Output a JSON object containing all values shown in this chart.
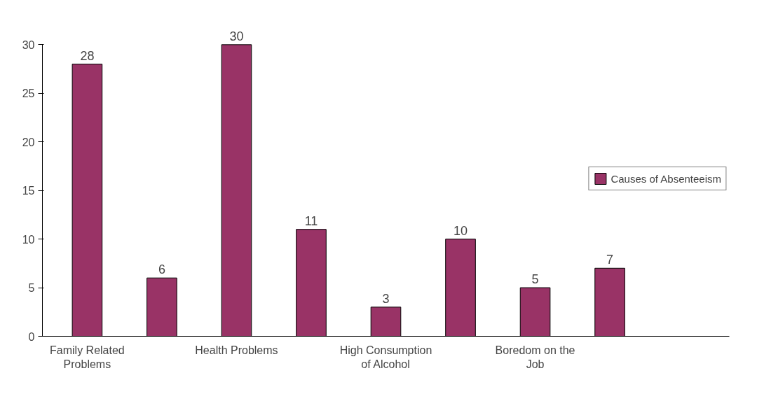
{
  "chart_data": {
    "type": "bar",
    "categories": [
      "Family Related Problems",
      null,
      "Health Problems",
      null,
      "High Consumption of Alcohol",
      null,
      "Boredom on the Job",
      null,
      null
    ],
    "series": [
      {
        "name": "Causes of Absenteeism",
        "color": "#993366",
        "values": [
          28,
          6,
          30,
          11,
          3,
          10,
          5,
          7,
          null
        ]
      }
    ],
    "ylim": [
      0,
      30
    ],
    "yticks": [
      0,
      5,
      10,
      15,
      20,
      25,
      30
    ],
    "grid": false,
    "legend": "right",
    "data_labels": true
  }
}
